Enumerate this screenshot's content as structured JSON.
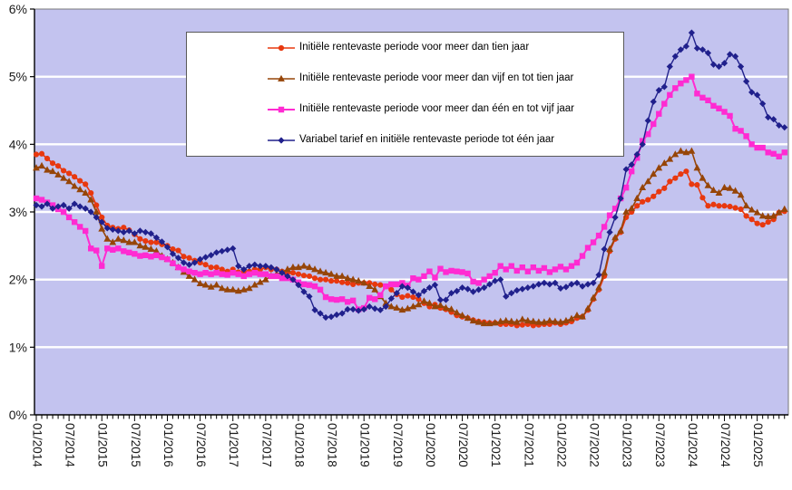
{
  "chart_data": {
    "type": "line",
    "title": "",
    "x_start": "01/2014",
    "x_end": "06/2025",
    "x_tick_interval_months": 6,
    "x_tick_labels": [
      "01/2014",
      "07/2014",
      "01/2015",
      "07/2015",
      "01/2016",
      "07/2016",
      "01/2017",
      "07/2017",
      "01/2018",
      "07/2018",
      "01/2019",
      "07/2019",
      "01/2020",
      "07/2020",
      "01/2021",
      "07/2021",
      "01/2022",
      "07/2022",
      "01/2023",
      "07/2023",
      "01/2024",
      "07/2024",
      "01/2025"
    ],
    "y_tick_labels": [
      "0%",
      "1%",
      "2%",
      "3%",
      "4%",
      "5%",
      "6%"
    ],
    "ylim": [
      0,
      6
    ],
    "grid": "horizontal",
    "colors": {
      "plot_background": "#C3C3EF",
      "gridline": "#FFFFFF",
      "axis": "#000000",
      "legend_border": "#595959",
      "legend_background": "#FFFFFF"
    },
    "legend_position": "top-center",
    "series": [
      {
        "name": "Initiële rentevaste periode voor meer dan tien jaar",
        "color": "#E8380F",
        "marker": "circle",
        "values": [
          3.85,
          3.86,
          3.79,
          3.72,
          3.68,
          3.61,
          3.57,
          3.52,
          3.46,
          3.41,
          3.28,
          3.1,
          2.92,
          2.8,
          2.77,
          2.75,
          2.77,
          2.73,
          2.67,
          2.6,
          2.57,
          2.55,
          2.55,
          2.52,
          2.5,
          2.45,
          2.43,
          2.34,
          2.32,
          2.28,
          2.25,
          2.22,
          2.18,
          2.18,
          2.15,
          2.12,
          2.15,
          2.11,
          2.12,
          2.12,
          2.15,
          2.15,
          2.18,
          2.15,
          2.15,
          2.12,
          2.1,
          2.1,
          2.08,
          2.06,
          2.05,
          2.02,
          2.0,
          2.0,
          1.98,
          1.98,
          1.96,
          1.95,
          1.93,
          1.95,
          1.95,
          1.95,
          1.93,
          1.92,
          1.9,
          1.85,
          1.78,
          1.74,
          1.76,
          1.74,
          1.71,
          1.65,
          1.6,
          1.63,
          1.58,
          1.56,
          1.52,
          1.47,
          1.45,
          1.43,
          1.4,
          1.38,
          1.37,
          1.36,
          1.36,
          1.34,
          1.34,
          1.34,
          1.32,
          1.33,
          1.34,
          1.32,
          1.33,
          1.34,
          1.34,
          1.36,
          1.34,
          1.36,
          1.38,
          1.43,
          1.45,
          1.55,
          1.71,
          1.85,
          2.05,
          2.42,
          2.6,
          2.7,
          2.92,
          3.0,
          3.09,
          3.15,
          3.18,
          3.23,
          3.3,
          3.35,
          3.45,
          3.5,
          3.56,
          3.6,
          3.41,
          3.4,
          3.21,
          3.09,
          3.11,
          3.09,
          3.09,
          3.08,
          3.06,
          3.04,
          2.94,
          2.89,
          2.83,
          2.81,
          2.85,
          2.89,
          2.99,
          3.01
        ]
      },
      {
        "name": "Initiële rentevaste periode voor meer dan vijf en tot tien jaar",
        "color": "#964508",
        "marker": "triangle",
        "values": [
          3.65,
          3.68,
          3.62,
          3.6,
          3.55,
          3.5,
          3.45,
          3.38,
          3.33,
          3.28,
          3.18,
          3.0,
          2.75,
          2.6,
          2.55,
          2.6,
          2.58,
          2.55,
          2.55,
          2.5,
          2.48,
          2.45,
          2.42,
          2.35,
          2.3,
          2.25,
          2.18,
          2.11,
          2.05,
          2.0,
          1.94,
          1.92,
          1.89,
          1.92,
          1.87,
          1.85,
          1.85,
          1.83,
          1.85,
          1.87,
          1.92,
          1.96,
          2.0,
          2.05,
          2.08,
          2.11,
          2.15,
          2.18,
          2.18,
          2.2,
          2.18,
          2.15,
          2.12,
          2.1,
          2.08,
          2.05,
          2.05,
          2.02,
          2.0,
          1.98,
          1.95,
          1.9,
          1.85,
          1.75,
          1.65,
          1.6,
          1.58,
          1.55,
          1.57,
          1.6,
          1.63,
          1.68,
          1.65,
          1.6,
          1.62,
          1.58,
          1.56,
          1.51,
          1.47,
          1.43,
          1.39,
          1.37,
          1.35,
          1.35,
          1.36,
          1.38,
          1.39,
          1.38,
          1.37,
          1.41,
          1.39,
          1.38,
          1.37,
          1.37,
          1.39,
          1.38,
          1.37,
          1.39,
          1.42,
          1.47,
          1.45,
          1.57,
          1.73,
          1.88,
          2.1,
          2.45,
          2.62,
          2.72,
          3.0,
          3.05,
          3.2,
          3.36,
          3.45,
          3.56,
          3.65,
          3.72,
          3.78,
          3.85,
          3.9,
          3.88,
          3.9,
          3.65,
          3.5,
          3.39,
          3.32,
          3.28,
          3.36,
          3.35,
          3.31,
          3.25,
          3.09,
          3.03,
          2.99,
          2.94,
          2.93,
          2.94,
          2.99,
          3.04
        ]
      },
      {
        "name": "Initiële rentevaste periode voor meer dan één en tot vijf jaar",
        "color": "#FF2BD2",
        "marker": "square",
        "values": [
          3.2,
          3.18,
          3.14,
          3.1,
          3.04,
          3.0,
          2.92,
          2.85,
          2.78,
          2.72,
          2.46,
          2.43,
          2.2,
          2.46,
          2.44,
          2.46,
          2.42,
          2.4,
          2.38,
          2.35,
          2.36,
          2.34,
          2.36,
          2.33,
          2.3,
          2.24,
          2.18,
          2.15,
          2.12,
          2.1,
          2.08,
          2.1,
          2.08,
          2.1,
          2.08,
          2.07,
          2.1,
          2.08,
          2.05,
          2.08,
          2.1,
          2.08,
          2.08,
          2.05,
          2.05,
          2.02,
          2.02,
          2.0,
          1.96,
          1.93,
          1.92,
          1.9,
          1.85,
          1.74,
          1.71,
          1.7,
          1.71,
          1.67,
          1.69,
          1.56,
          1.58,
          1.73,
          1.71,
          1.77,
          1.9,
          1.93,
          1.93,
          1.95,
          1.91,
          2.02,
          2.0,
          2.05,
          2.12,
          2.03,
          2.16,
          2.11,
          2.13,
          2.12,
          2.11,
          2.09,
          1.97,
          1.95,
          2.0,
          2.05,
          2.1,
          2.2,
          2.15,
          2.2,
          2.13,
          2.18,
          2.12,
          2.18,
          2.13,
          2.17,
          2.11,
          2.15,
          2.19,
          2.15,
          2.2,
          2.25,
          2.35,
          2.47,
          2.55,
          2.65,
          2.78,
          2.95,
          3.05,
          3.2,
          3.36,
          3.6,
          3.8,
          4.05,
          4.15,
          4.3,
          4.45,
          4.6,
          4.73,
          4.83,
          4.9,
          4.95,
          5.0,
          4.75,
          4.69,
          4.65,
          4.57,
          4.53,
          4.48,
          4.42,
          4.23,
          4.2,
          4.12,
          4.0,
          3.95,
          3.95,
          3.88,
          3.86,
          3.82,
          3.88
        ]
      },
      {
        "name": "Variabel tarief en initiële rentevaste periode tot één jaar",
        "color": "#20208C",
        "marker": "diamond",
        "values": [
          3.1,
          3.08,
          3.12,
          3.05,
          3.08,
          3.1,
          3.05,
          3.12,
          3.08,
          3.05,
          3.0,
          2.92,
          2.85,
          2.76,
          2.74,
          2.72,
          2.7,
          2.72,
          2.68,
          2.72,
          2.7,
          2.68,
          2.62,
          2.56,
          2.48,
          2.38,
          2.32,
          2.25,
          2.22,
          2.25,
          2.3,
          2.33,
          2.36,
          2.4,
          2.42,
          2.44,
          2.46,
          2.2,
          2.15,
          2.2,
          2.22,
          2.2,
          2.2,
          2.18,
          2.15,
          2.1,
          2.05,
          2.0,
          1.92,
          1.82,
          1.75,
          1.55,
          1.5,
          1.44,
          1.45,
          1.48,
          1.5,
          1.56,
          1.56,
          1.54,
          1.56,
          1.6,
          1.57,
          1.55,
          1.6,
          1.72,
          1.8,
          1.9,
          1.88,
          1.82,
          1.77,
          1.83,
          1.88,
          1.92,
          1.7,
          1.7,
          1.8,
          1.83,
          1.88,
          1.86,
          1.82,
          1.85,
          1.88,
          1.93,
          1.98,
          2.0,
          1.75,
          1.8,
          1.84,
          1.86,
          1.88,
          1.9,
          1.93,
          1.95,
          1.93,
          1.95,
          1.87,
          1.89,
          1.93,
          1.95,
          1.9,
          1.93,
          1.95,
          2.07,
          2.45,
          2.7,
          2.92,
          3.2,
          3.63,
          3.7,
          3.85,
          4.0,
          4.35,
          4.63,
          4.8,
          4.85,
          5.15,
          5.3,
          5.4,
          5.45,
          5.65,
          5.42,
          5.4,
          5.35,
          5.18,
          5.15,
          5.2,
          5.33,
          5.3,
          5.15,
          4.93,
          4.77,
          4.73,
          4.6,
          4.4,
          4.37,
          4.28,
          4.25
        ]
      }
    ]
  }
}
